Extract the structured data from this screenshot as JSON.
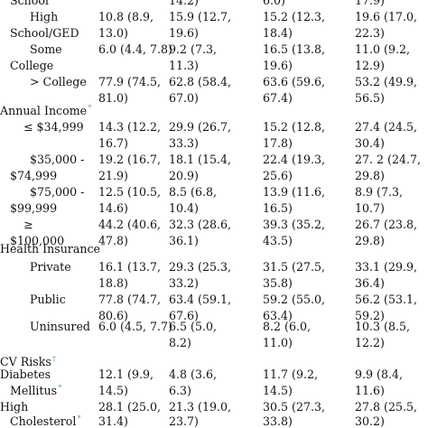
{
  "sections": {
    "education_tail": {
      "school_label": "School",
      "school_values": [
        "",
        "14.2)",
        "6.0)",
        "17.9)"
      ],
      "high_school": {
        "label_l1": "High",
        "label_l2": "School/GED",
        "values_l1": [
          "10.8 (8.9,",
          "15.9 (12.7,",
          "15.2 (12.3,",
          "19.6 (17.0,"
        ],
        "values_l2": [
          "13.0)",
          "19.6)",
          "18.4)",
          "22.3)"
        ]
      },
      "some_college": {
        "label_l1": "Some",
        "label_l2": "College",
        "values_l1": [
          "6.0 (4.4, 7.8)",
          "9.2 (7.3,",
          "16.5 (13.8,",
          "11.0 (9.2,"
        ],
        "values_l2": [
          "",
          "11.3)",
          "19.6)",
          "12.9)"
        ]
      },
      "gt_college": {
        "label_l1": "> College",
        "values_l1": [
          "77.9 (74.5,",
          "62.8 (58.4,",
          "63.6 (59.6,",
          "53.2 (49.9,"
        ],
        "values_l2": [
          "81.0)",
          "67.0)",
          "67.4)",
          "56.5)"
        ]
      }
    },
    "income": {
      "heading": "Annual Income",
      "marker": "*",
      "r1": {
        "label_l1": "≤ $34,999",
        "values_l1": [
          "14.3 (12.2,",
          "29.9 (26.7,",
          "15.2 (12.8,",
          "27.4 (24.5,"
        ],
        "values_l2": [
          "16.7)",
          "33.3)",
          "17.8)",
          "30.4)"
        ]
      },
      "r2": {
        "label_l1": "$35,000 -",
        "label_l2": "$74,999",
        "values_l1": [
          "19.2 (16.7,",
          "18.1 (15.4,",
          "22.4 (19.3,",
          "27. 2 (24.7,"
        ],
        "values_l2": [
          "21.9)",
          "20.9)",
          "25.6)",
          "29.8)"
        ]
      },
      "r3": {
        "label_l1": "$75,000 -",
        "label_l2": "$99,999",
        "values_l1": [
          "12.5 (10.5,",
          "8.5 (6.8,",
          "13.9 (11.6,",
          "8.9 (7.3,"
        ],
        "values_l2": [
          "14.6)",
          "10.4)",
          "16.5)",
          "10.7)"
        ]
      },
      "r4": {
        "label_l1": "≥",
        "label_l2": "$100,000",
        "values_l1": [
          "44.2 (40.6,",
          "32.3 (28.6,",
          "39.3 (35.2,",
          "26.7 (23.8,"
        ],
        "values_l2": [
          "47.8)",
          "36.1)",
          "43.5)",
          "29.8)"
        ]
      }
    },
    "insurance": {
      "heading": "Health Insurance",
      "marker": "*",
      "private": {
        "label_l1": "Private",
        "values_l1": [
          "16.1 (13.7,",
          "29.3 (25.3,",
          "31.5 (27.5,",
          "33.1 (29.9,"
        ],
        "values_l2": [
          "18.8)",
          "33.2)",
          "35.8)",
          "36.4)"
        ]
      },
      "public": {
        "label_l1": "Public",
        "values_l1": [
          "77.8 (74.7,",
          "63.4 (59.1,",
          "59.2 (55.0,",
          "56.2 (53.1,"
        ],
        "values_l2": [
          "80.6)",
          "67.6)",
          "63.4)",
          "59.2)"
        ]
      },
      "uninsured": {
        "label_l1": "Uninsured",
        "values_l1": [
          "6.0 (4.5, 7.7)",
          "6.5 (5.0,",
          "8.2 (6.0,",
          "10.3 (8.5,"
        ],
        "values_l2": [
          "",
          "8.2)",
          "11.0)",
          "12.2)"
        ]
      }
    },
    "cv": {
      "heading": "CV Risks",
      "marker": "†",
      "diabetes": {
        "label_l1": "Diabetes",
        "label_l2": "Mellitus",
        "marker": "*",
        "values_l1": [
          "12.1 (9.9,",
          "4.8 (3.6,",
          "11.7 (9.2,",
          "9.9 (8.4,"
        ],
        "values_l2": [
          "14.5)",
          "6.3)",
          "14.5)",
          "11.6)"
        ]
      },
      "cholesterol": {
        "label_l1": "High",
        "label_l2": "Cholesterol",
        "marker": "*",
        "values_l1": [
          "28.1 (25.0,",
          "21.3 (19.0,",
          "30.5 (27.3,",
          "27.8 (25.5,"
        ],
        "values_l2": [
          "31.4)",
          "23.7)",
          "33.8)",
          "30.2)"
        ]
      }
    }
  }
}
